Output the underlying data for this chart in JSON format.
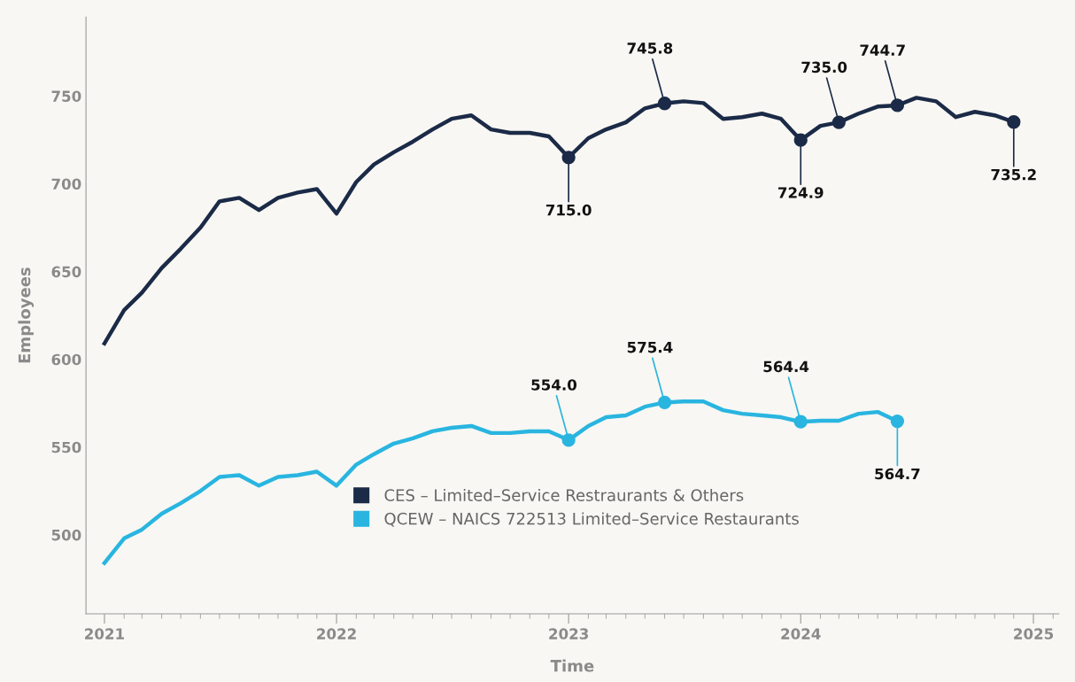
{
  "chart_data": {
    "type": "line",
    "xlabel": "Time",
    "ylabel": "Employees",
    "x": [
      "2021-01",
      "2021-02",
      "2021-03",
      "2021-04",
      "2021-05",
      "2021-06",
      "2021-07",
      "2021-08",
      "2021-09",
      "2021-10",
      "2021-11",
      "2021-12",
      "2022-01",
      "2022-02",
      "2022-03",
      "2022-04",
      "2022-05",
      "2022-06",
      "2022-07",
      "2022-08",
      "2022-09",
      "2022-10",
      "2022-11",
      "2022-12",
      "2023-01",
      "2023-02",
      "2023-03",
      "2023-04",
      "2023-05",
      "2023-06",
      "2023-07",
      "2023-08",
      "2023-09",
      "2023-10",
      "2023-11",
      "2023-12",
      "2024-01",
      "2024-02",
      "2024-03",
      "2024-04",
      "2024-05",
      "2024-06",
      "2024-07",
      "2024-08",
      "2024-09",
      "2024-10",
      "2024-11",
      "2024-12"
    ],
    "series": [
      {
        "name": "CES – Limited–Service Restraurants & Others",
        "color": "#1b2a47",
        "values": [
          609,
          628,
          638,
          652,
          663,
          675,
          690,
          692,
          685,
          692,
          695,
          697,
          683,
          701,
          711,
          718,
          724,
          731,
          737,
          739,
          731,
          729,
          729,
          727,
          715.0,
          726,
          731,
          735,
          743,
          745.8,
          747,
          746,
          737,
          738,
          740,
          737,
          724.9,
          733,
          735.0,
          740,
          744,
          744.7,
          749,
          747,
          738,
          741,
          739,
          735.2
        ]
      },
      {
        "name": "QCEW – NAICS 722513 Limited–Service Restaurants",
        "color": "#29b5e0",
        "values": [
          484,
          498,
          503,
          512,
          518,
          525,
          533,
          534,
          528,
          533,
          534,
          536,
          528,
          540,
          546,
          552,
          555,
          559,
          561,
          562,
          558,
          558,
          559,
          559,
          554.0,
          562,
          567,
          568,
          573,
          575.4,
          576,
          576,
          571,
          569,
          568,
          567,
          564.4,
          565,
          565,
          569,
          570,
          564.7,
          null,
          null,
          null,
          null,
          null,
          null
        ]
      }
    ],
    "annotations": [
      {
        "text": "715.0",
        "x": "2023-01",
        "y": 715.0
      },
      {
        "text": "745.8",
        "x": "2023-06",
        "y": 745.8
      },
      {
        "text": "724.9",
        "x": "2024-01",
        "y": 724.9
      },
      {
        "text": "735.0",
        "x": "2024-03",
        "y": 735.0
      },
      {
        "text": "744.7",
        "x": "2024-06",
        "y": 744.7
      },
      {
        "text": "735.2",
        "x": "2024-12",
        "y": 735.2
      },
      {
        "text": "554.0",
        "x": "2023-01",
        "y": 554.0
      },
      {
        "text": "575.4",
        "x": "2023-06",
        "y": 575.4
      },
      {
        "text": "564.4",
        "x": "2024-01",
        "y": 564.4
      },
      {
        "text": "564.7",
        "x": "2024-06",
        "y": 564.7
      }
    ],
    "xlim": [
      "2020-12-03",
      "2025-02-10"
    ],
    "xticks": [
      {
        "value": "2021-01-01",
        "label": "2021"
      },
      {
        "value": "2022-01-01",
        "label": "2022"
      },
      {
        "value": "2023-01-01",
        "label": "2023"
      },
      {
        "value": "2024-01-01",
        "label": "2024"
      },
      {
        "value": "2025-01-01",
        "label": "2025"
      }
    ],
    "ylim": [
      455,
      795
    ],
    "yticks": [
      500,
      550,
      600,
      650,
      700,
      750
    ],
    "grid": false,
    "legend": "bottom",
    "marker": "none",
    "line_style": "solid"
  }
}
